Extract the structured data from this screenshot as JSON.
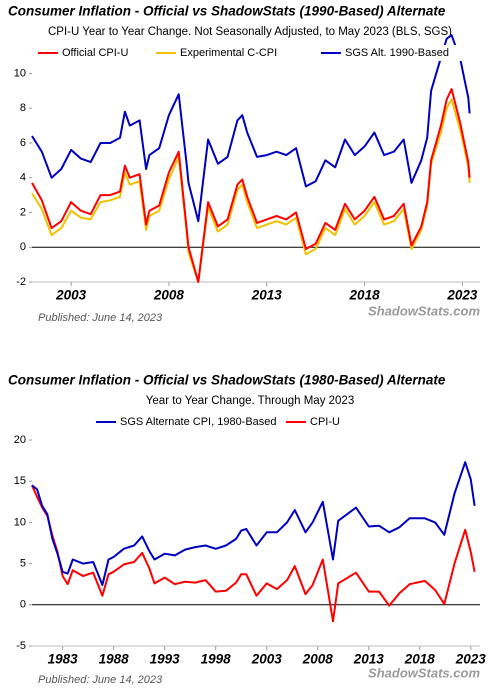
{
  "chart_data": [
    {
      "type": "line",
      "title": "Consumer Inflation - Official vs ShadowStats (1990-Based) Alternate",
      "subtitle": "CPI-U Year to Year Change. Not Seasonally Adjusted, to May 2023  (BLS, SGS)",
      "annotations": [
        "Published: June 14, 2023",
        "ShadowStats.com"
      ],
      "x": [
        2001.0,
        2001.5,
        2002.0,
        2002.5,
        2003.0,
        2003.5,
        2004.0,
        2004.5,
        2005.0,
        2005.5,
        2005.75,
        2006.0,
        2006.5,
        2006.83,
        2007.0,
        2007.5,
        2008.0,
        2008.5,
        2008.9,
        2009.0,
        2009.5,
        2010.0,
        2010.5,
        2011.0,
        2011.5,
        2011.75,
        2012.0,
        2012.5,
        2013.0,
        2013.5,
        2014.0,
        2014.5,
        2015.0,
        2015.5,
        2016.0,
        2016.5,
        2017.0,
        2017.5,
        2018.0,
        2018.5,
        2019.0,
        2019.5,
        2020.0,
        2020.4,
        2020.9,
        2021.2,
        2021.4,
        2021.9,
        2022.2,
        2022.45,
        2022.9,
        2023.1,
        2023.3,
        2023.37
      ],
      "series": [
        {
          "name": "Official CPI-U",
          "color": "#ff0000",
          "values": [
            3.7,
            2.7,
            1.1,
            1.5,
            2.6,
            2.1,
            1.9,
            3.0,
            3.0,
            3.2,
            4.7,
            4.0,
            4.2,
            1.3,
            2.1,
            2.4,
            4.3,
            5.5,
            1.1,
            0.0,
            -2.0,
            2.6,
            1.2,
            1.6,
            3.6,
            3.9,
            2.9,
            1.4,
            1.6,
            1.8,
            1.6,
            2.0,
            -0.1,
            0.2,
            1.4,
            1.0,
            2.5,
            1.6,
            2.1,
            2.9,
            1.6,
            1.8,
            2.5,
            0.1,
            1.2,
            2.6,
            5.0,
            7.0,
            8.5,
            9.1,
            7.1,
            6.0,
            4.9,
            4.0
          ]
        },
        {
          "name": "Experimental C-CPI",
          "color": "#f2c200",
          "values": [
            3.1,
            2.2,
            0.7,
            1.1,
            2.1,
            1.7,
            1.6,
            2.6,
            2.7,
            2.9,
            4.3,
            3.6,
            3.8,
            1.0,
            1.8,
            2.1,
            3.9,
            5.2,
            0.9,
            -0.3,
            -2.0,
            2.3,
            0.9,
            1.3,
            3.3,
            3.6,
            2.6,
            1.1,
            1.3,
            1.5,
            1.3,
            1.7,
            -0.4,
            -0.1,
            1.1,
            0.7,
            2.2,
            1.3,
            1.8,
            2.6,
            1.3,
            1.5,
            2.2,
            -0.1,
            1.0,
            2.4,
            4.8,
            6.6,
            8.0,
            8.5,
            6.7,
            5.7,
            4.6,
            3.7
          ]
        },
        {
          "name": "SGS  Alt. 1990-Based",
          "color": "#0000c0",
          "values": [
            6.4,
            5.5,
            4.0,
            4.5,
            5.6,
            5.1,
            4.9,
            6.0,
            6.0,
            6.3,
            7.8,
            7.0,
            7.3,
            4.5,
            5.3,
            5.7,
            7.6,
            8.8,
            4.8,
            3.7,
            1.5,
            6.2,
            4.8,
            5.2,
            7.3,
            7.6,
            6.6,
            5.2,
            5.3,
            5.5,
            5.3,
            5.7,
            3.5,
            3.8,
            5.0,
            4.6,
            6.2,
            5.3,
            5.8,
            6.6,
            5.3,
            5.5,
            6.2,
            3.7,
            5.0,
            6.3,
            9.0,
            10.9,
            12.0,
            12.2,
            10.8,
            9.7,
            8.6,
            7.7
          ]
        }
      ],
      "xlim": [
        2001,
        2023.9
      ],
      "xticks": [
        2003,
        2008,
        2013,
        2018,
        2023
      ],
      "ylim": [
        -2,
        12.5
      ],
      "yticks": [
        -2,
        0,
        2,
        4,
        6,
        8,
        10
      ]
    },
    {
      "type": "line",
      "title": "Consumer Inflation - Official vs ShadowStats (1980-Based) Alternate",
      "subtitle": "Year to Year Change. Through May 2023",
      "annotations": [
        "Published: June 14, 2023",
        "ShadowStats.com"
      ],
      "x": [
        1980.0,
        1980.5,
        1981.0,
        1981.5,
        1982.0,
        1982.5,
        1983.0,
        1983.5,
        1984.0,
        1985.0,
        1986.0,
        1986.9,
        1987.5,
        1988.0,
        1989.0,
        1990.0,
        1990.8,
        1991.5,
        1992.0,
        1993.0,
        1994.0,
        1995.0,
        1996.0,
        1997.0,
        1998.0,
        1999.0,
        2000.0,
        2000.5,
        2001.0,
        2002.0,
        2003.0,
        2004.0,
        2005.0,
        2005.75,
        2006.8,
        2007.5,
        2008.5,
        2009.5,
        2010.0,
        2011.75,
        2013.0,
        2014.0,
        2015.0,
        2016.0,
        2017.0,
        2018.5,
        2019.5,
        2020.4,
        2021.4,
        2022.45,
        2023.0,
        2023.37
      ],
      "series": [
        {
          "name": "SGS Alternate CPI, 1980-Based",
          "color": "#0000c0",
          "values": [
            14.5,
            14.0,
            12.0,
            11.0,
            8.0,
            6.2,
            4.0,
            3.8,
            5.5,
            5.0,
            5.2,
            2.4,
            5.5,
            5.8,
            6.8,
            7.2,
            8.3,
            6.5,
            5.5,
            6.2,
            6.0,
            6.7,
            7.0,
            7.2,
            6.8,
            7.2,
            8.0,
            9.0,
            9.2,
            7.2,
            8.8,
            8.8,
            10.0,
            11.5,
            8.8,
            10.0,
            12.5,
            5.5,
            10.2,
            11.8,
            9.5,
            9.6,
            8.8,
            9.4,
            10.5,
            10.5,
            10.0,
            8.5,
            13.5,
            17.3,
            15.2,
            12.0
          ]
        },
        {
          "name": "CPI-U",
          "color": "#ff0000",
          "values": [
            14.5,
            13.1,
            11.8,
            10.8,
            8.4,
            6.4,
            3.5,
            2.5,
            4.2,
            3.5,
            3.9,
            1.1,
            3.7,
            4.0,
            4.9,
            5.2,
            6.3,
            4.4,
            2.6,
            3.3,
            2.5,
            2.8,
            2.7,
            3.0,
            1.6,
            1.7,
            2.7,
            3.7,
            3.7,
            1.1,
            2.6,
            1.9,
            3.0,
            4.7,
            1.3,
            2.4,
            5.5,
            -2.0,
            2.6,
            3.9,
            1.6,
            1.6,
            -0.1,
            1.4,
            2.5,
            2.9,
            1.8,
            0.1,
            5.0,
            9.1,
            6.4,
            4.0
          ]
        }
      ],
      "xlim": [
        1980,
        2023.9
      ],
      "xticks": [
        1983,
        1988,
        1993,
        1998,
        2003,
        2008,
        2013,
        2018,
        2023
      ],
      "ylim": [
        -5,
        20
      ],
      "yticks": [
        -5,
        0,
        5,
        10,
        15,
        20
      ]
    }
  ]
}
